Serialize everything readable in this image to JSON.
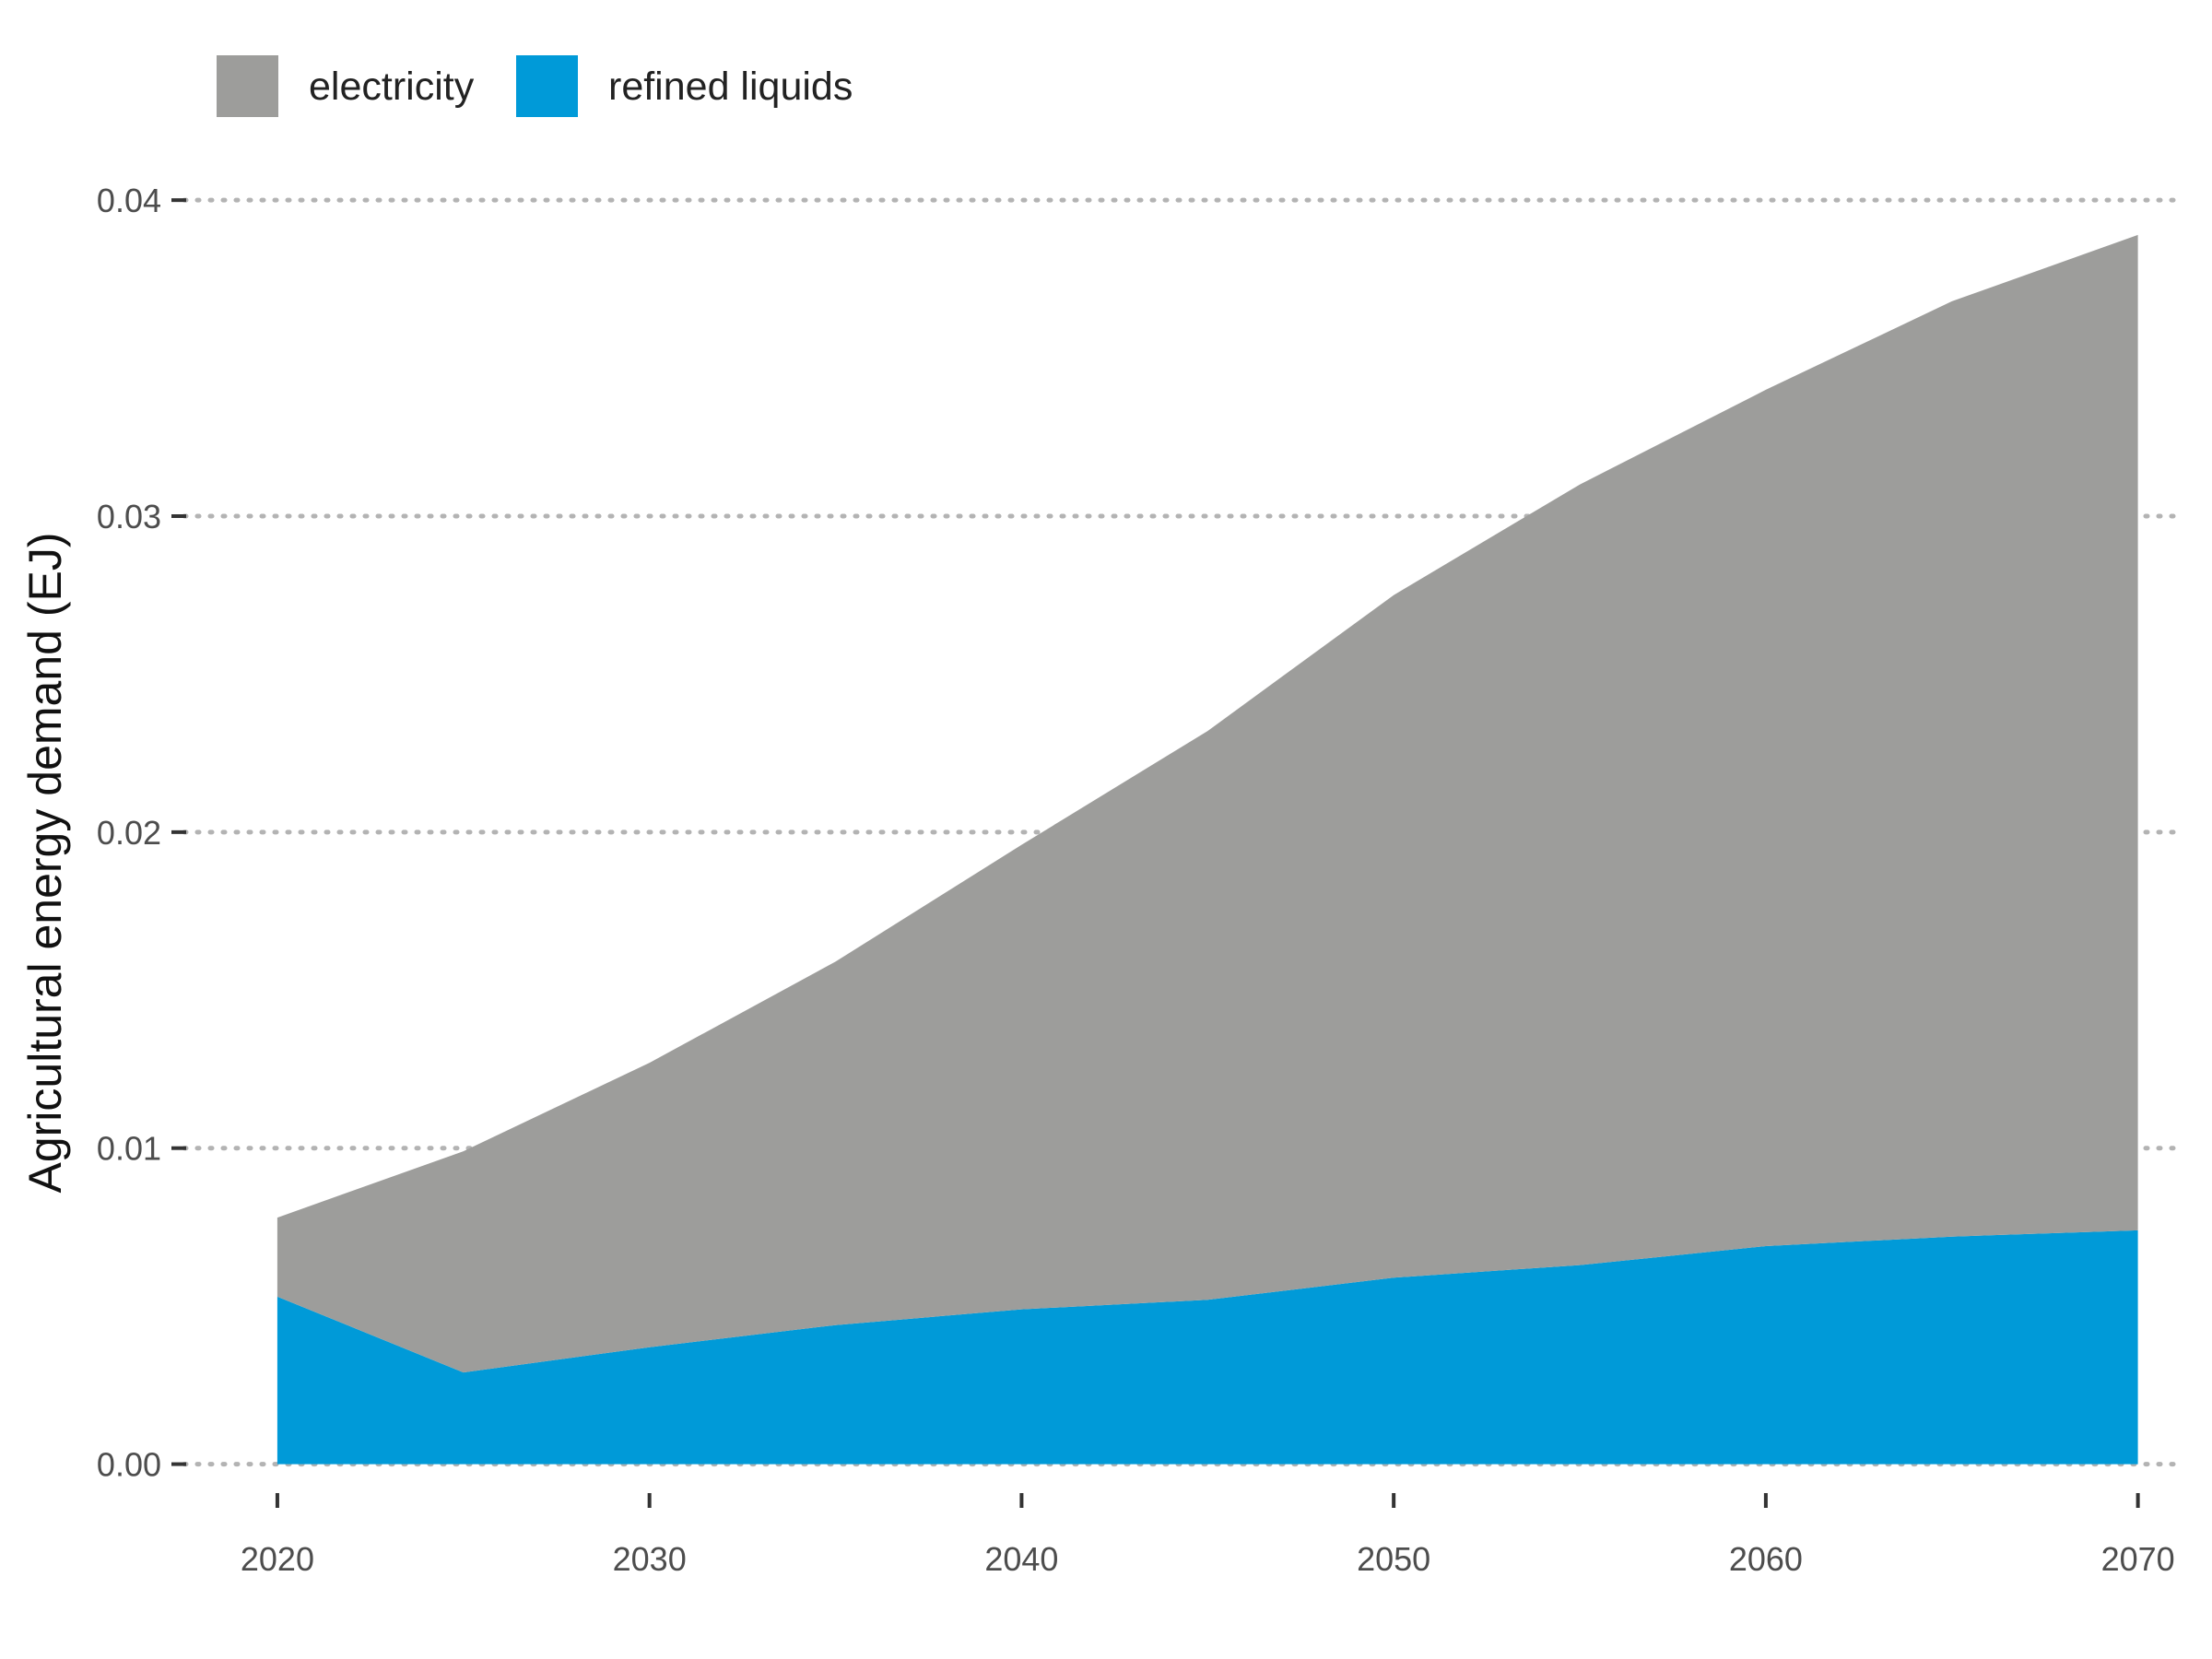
{
  "chart_data": {
    "type": "area",
    "stacked": true,
    "x": [
      2020,
      2025,
      2030,
      2035,
      2040,
      2045,
      2050,
      2055,
      2060,
      2065,
      2070
    ],
    "series": [
      {
        "name": "refined liquids",
        "color": "#009ad8",
        "values": [
          0.0053,
          0.0029,
          0.0037,
          0.0044,
          0.0049,
          0.0052,
          0.0059,
          0.0063,
          0.0069,
          0.0072,
          0.0074
        ]
      },
      {
        "name": "electricity",
        "color": "#9d9d9b",
        "values": [
          0.0025,
          0.007,
          0.009,
          0.0115,
          0.0147,
          0.018,
          0.0216,
          0.0247,
          0.0271,
          0.0296,
          0.0315
        ]
      }
    ],
    "legend_order": [
      "electricity",
      "refined liquids"
    ],
    "ylabel": "Agricultural energy demand (EJ)",
    "xlabel": "",
    "xlim": [
      2017.5,
      2071.0
    ],
    "ylim": [
      -0.0015,
      0.0405
    ],
    "x_ticks": [
      "2020",
      "2030",
      "2040",
      "2050",
      "2060",
      "2070"
    ],
    "y_ticks": [
      "0.00",
      "0.01",
      "0.02",
      "0.03",
      "0.04"
    ],
    "grid": "horizontal dotted",
    "grid_color": "#b3b3b3",
    "legend_position": "top-left"
  }
}
